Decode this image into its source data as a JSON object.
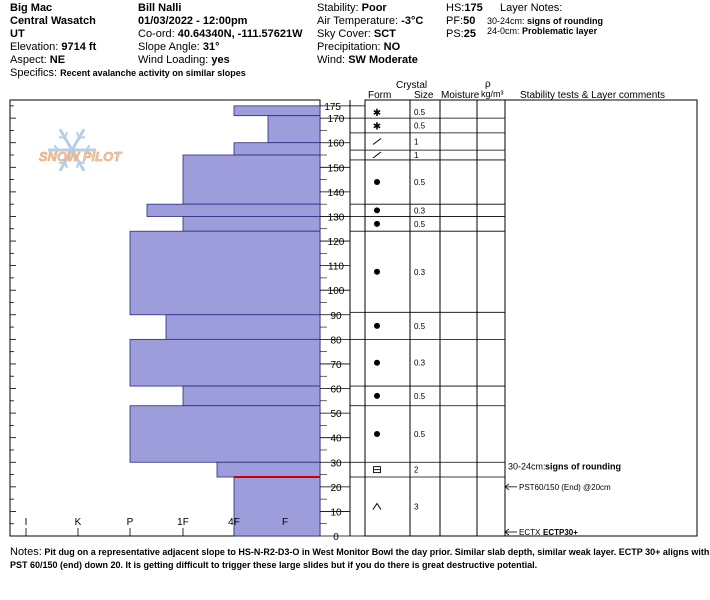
{
  "header": {
    "site": "Big Mac",
    "range": "Central Wasatch",
    "state": "UT",
    "elevation_label": "Elevation:",
    "elevation": "9714 ft",
    "aspect_label": "Aspect:",
    "aspect": "NE",
    "specifics_label": "Specifics:",
    "specifics": "Recent avalanche activity on similar slopes",
    "observer": "Bill Nalli",
    "datetime": "01/03/2022 - 12:00pm",
    "coord_label": "Co-ord:",
    "coords": "40.64340N, -111.57621W",
    "slope_label": "Slope Angle:",
    "slope": "31°",
    "wind_loading_label": "Wind Loading:",
    "wind_loading": "yes",
    "stability_label": "Stability:",
    "stability": "Poor",
    "air_temp_label": "Air Temperature:",
    "air_temp": "-3°C",
    "sky_label": "Sky Cover:",
    "sky": "SCT",
    "precip_label": "Precipitation:",
    "precip": "NO",
    "wind_label": "Wind:",
    "wind": "SW Moderate",
    "hs_label": "HS:",
    "hs": "175",
    "pf_label": "PF:",
    "pf": "50",
    "ps_label": "PS:",
    "ps": "25",
    "layer_notes_label": "Layer Notes:",
    "layer_notes": [
      {
        "range": "30-24cm:",
        "note": "signs of rounding"
      },
      {
        "range": "24-0cm:",
        "note": "Problematic layer"
      }
    ]
  },
  "logo_text": "SNOW PILOT",
  "columns": {
    "crystal": "Crystal",
    "form": "Form",
    "size": "Size",
    "moisture": "Moisture",
    "rho": "ρ",
    "density_unit": "kg/m³",
    "stability_tests": "Stability tests & Layer comments"
  },
  "hardness_axis": [
    "I",
    "K",
    "P",
    "1F",
    "4F",
    "F"
  ],
  "chart_data": {
    "type": "snow_profile",
    "depth_ticks": [
      0,
      10,
      20,
      30,
      40,
      50,
      60,
      70,
      80,
      90,
      100,
      110,
      120,
      130,
      140,
      150,
      160,
      170,
      175
    ],
    "colors": {
      "fill": "#9d9ddc",
      "stroke": "#2a2a80",
      "weak_layer": "#cc0000"
    },
    "hardness_layers": [
      {
        "top": 175,
        "bottom": 171,
        "hardness": "4F"
      },
      {
        "top": 171,
        "bottom": 160,
        "hardness": "F+"
      },
      {
        "top": 160,
        "bottom": 155,
        "hardness": "4F"
      },
      {
        "top": 155,
        "bottom": 135,
        "hardness": "1F"
      },
      {
        "top": 135,
        "bottom": 130,
        "hardness": "P-"
      },
      {
        "top": 130,
        "bottom": 124,
        "hardness": "1F"
      },
      {
        "top": 124,
        "bottom": 90,
        "hardness": "P"
      },
      {
        "top": 90,
        "bottom": 80,
        "hardness": "1F+"
      },
      {
        "top": 80,
        "bottom": 61,
        "hardness": "P"
      },
      {
        "top": 61,
        "bottom": 53,
        "hardness": "1F"
      },
      {
        "top": 53,
        "bottom": 30,
        "hardness": "P"
      },
      {
        "top": 30,
        "bottom": 24,
        "hardness": "4F+"
      },
      {
        "top": 24,
        "bottom": 0,
        "hardness": "4F"
      }
    ],
    "crystal_layers": [
      {
        "top": 175,
        "bottom": 170,
        "form": "graupel",
        "size": "0.5"
      },
      {
        "top": 170,
        "bottom": 164,
        "form": "graupel",
        "size": "0.5"
      },
      {
        "top": 164,
        "bottom": 157,
        "form": "decomposing",
        "size": "1"
      },
      {
        "top": 157,
        "bottom": 153,
        "form": "decomposing",
        "size": "1"
      },
      {
        "top": 153,
        "bottom": 135,
        "form": "rounded",
        "size": "0.5"
      },
      {
        "top": 135,
        "bottom": 130,
        "form": "rounded",
        "size": "0.3"
      },
      {
        "top": 130,
        "bottom": 124,
        "form": "rounded",
        "size": "0.5"
      },
      {
        "top": 124,
        "bottom": 91,
        "form": "rounded",
        "size": "0.3"
      },
      {
        "top": 91,
        "bottom": 80,
        "form": "rounded",
        "size": "0.5"
      },
      {
        "top": 80,
        "bottom": 61,
        "form": "rounded",
        "size": "0.3"
      },
      {
        "top": 61,
        "bottom": 53,
        "form": "rounded",
        "size": "0.5"
      },
      {
        "top": 53,
        "bottom": 30,
        "form": "rounded",
        "size": "0.5"
      },
      {
        "top": 30,
        "bottom": 24,
        "form": "faceted-rounded",
        "size": "2"
      },
      {
        "top": 24,
        "bottom": 0,
        "form": "depth-hoar",
        "size": "3"
      }
    ],
    "layer_comments": [
      {
        "depth": 27,
        "range": "30-24cm:",
        "text": "signs of rounding"
      }
    ],
    "stability_tests": [
      {
        "depth": 20,
        "text": "PST60/150 (End) @20cm"
      },
      {
        "depth": 0,
        "label": "ECTX",
        "text": "ECTP30+"
      }
    ]
  },
  "notes_label": "Notes:",
  "notes": "Pit dug on a representative adjacent slope to HS-N-R2-D3-O in West Monitor Bowl the day prior. Similar slab depth, similar weak layer. ECTP 30+ aligns with PST 60/150 (end) down 20. It is getting difficult to trigger these large slides but if you do there is great destructive potential."
}
